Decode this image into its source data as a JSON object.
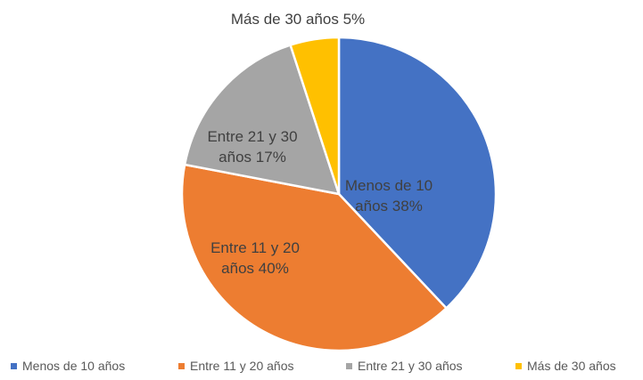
{
  "chart_data": {
    "type": "pie",
    "categories": [
      "Menos de 10 años",
      "Entre 11 y 20 años",
      "Entre 21 y 30 años",
      "Más de 30 años"
    ],
    "values": [
      38,
      40,
      17,
      5
    ],
    "value_labels": [
      "38%",
      "40%",
      "17%",
      "5%"
    ],
    "colors": [
      "#4472c4",
      "#ed7d31",
      "#a5a5a5",
      "#ffc000"
    ],
    "legend": "bottom"
  }
}
